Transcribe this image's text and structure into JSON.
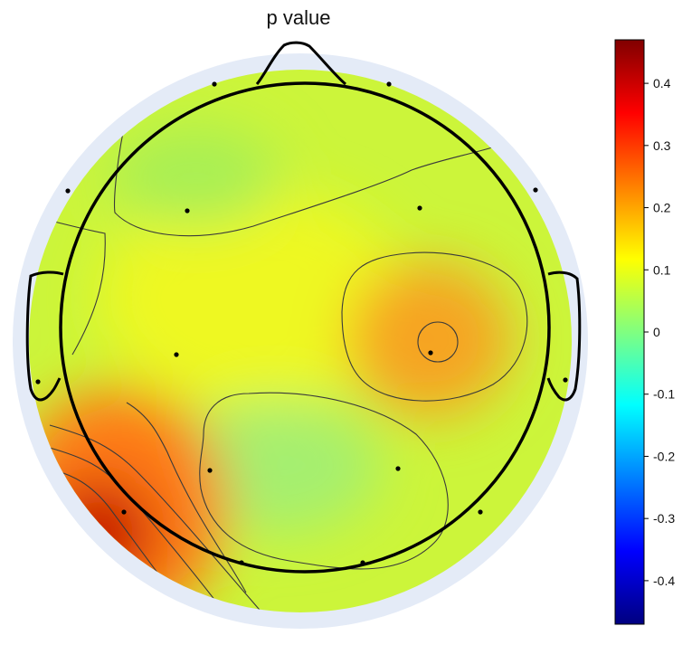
{
  "chart_data": {
    "type": "heatmap",
    "subtype": "eeg-topographic-map",
    "title": "p value",
    "colormap": "jet",
    "colorbar": {
      "range": [
        -0.47,
        0.47
      ],
      "ticks": [
        0.4,
        0.3,
        0.2,
        0.1,
        0,
        -0.1,
        -0.2,
        -0.3,
        -0.4
      ],
      "tick_labels": [
        "0.4",
        "0.3",
        "0.2",
        "0.1",
        "0",
        "-0.1",
        "-0.2",
        "-0.3",
        "-0.4"
      ],
      "placement": "right"
    },
    "field_features": [
      {
        "region": "right-temporal",
        "value": 0.22,
        "note": "local maximum"
      },
      {
        "region": "left-occipital",
        "value": 0.45,
        "note": "global maximum"
      },
      {
        "region": "central-posterior",
        "value": 0.0,
        "note": "local minimum"
      },
      {
        "region": "left-frontal",
        "value": 0.03,
        "note": "local minimum"
      },
      {
        "region": "background",
        "value": 0.1
      }
    ],
    "electrode_count": 16,
    "contour_lines": true
  }
}
